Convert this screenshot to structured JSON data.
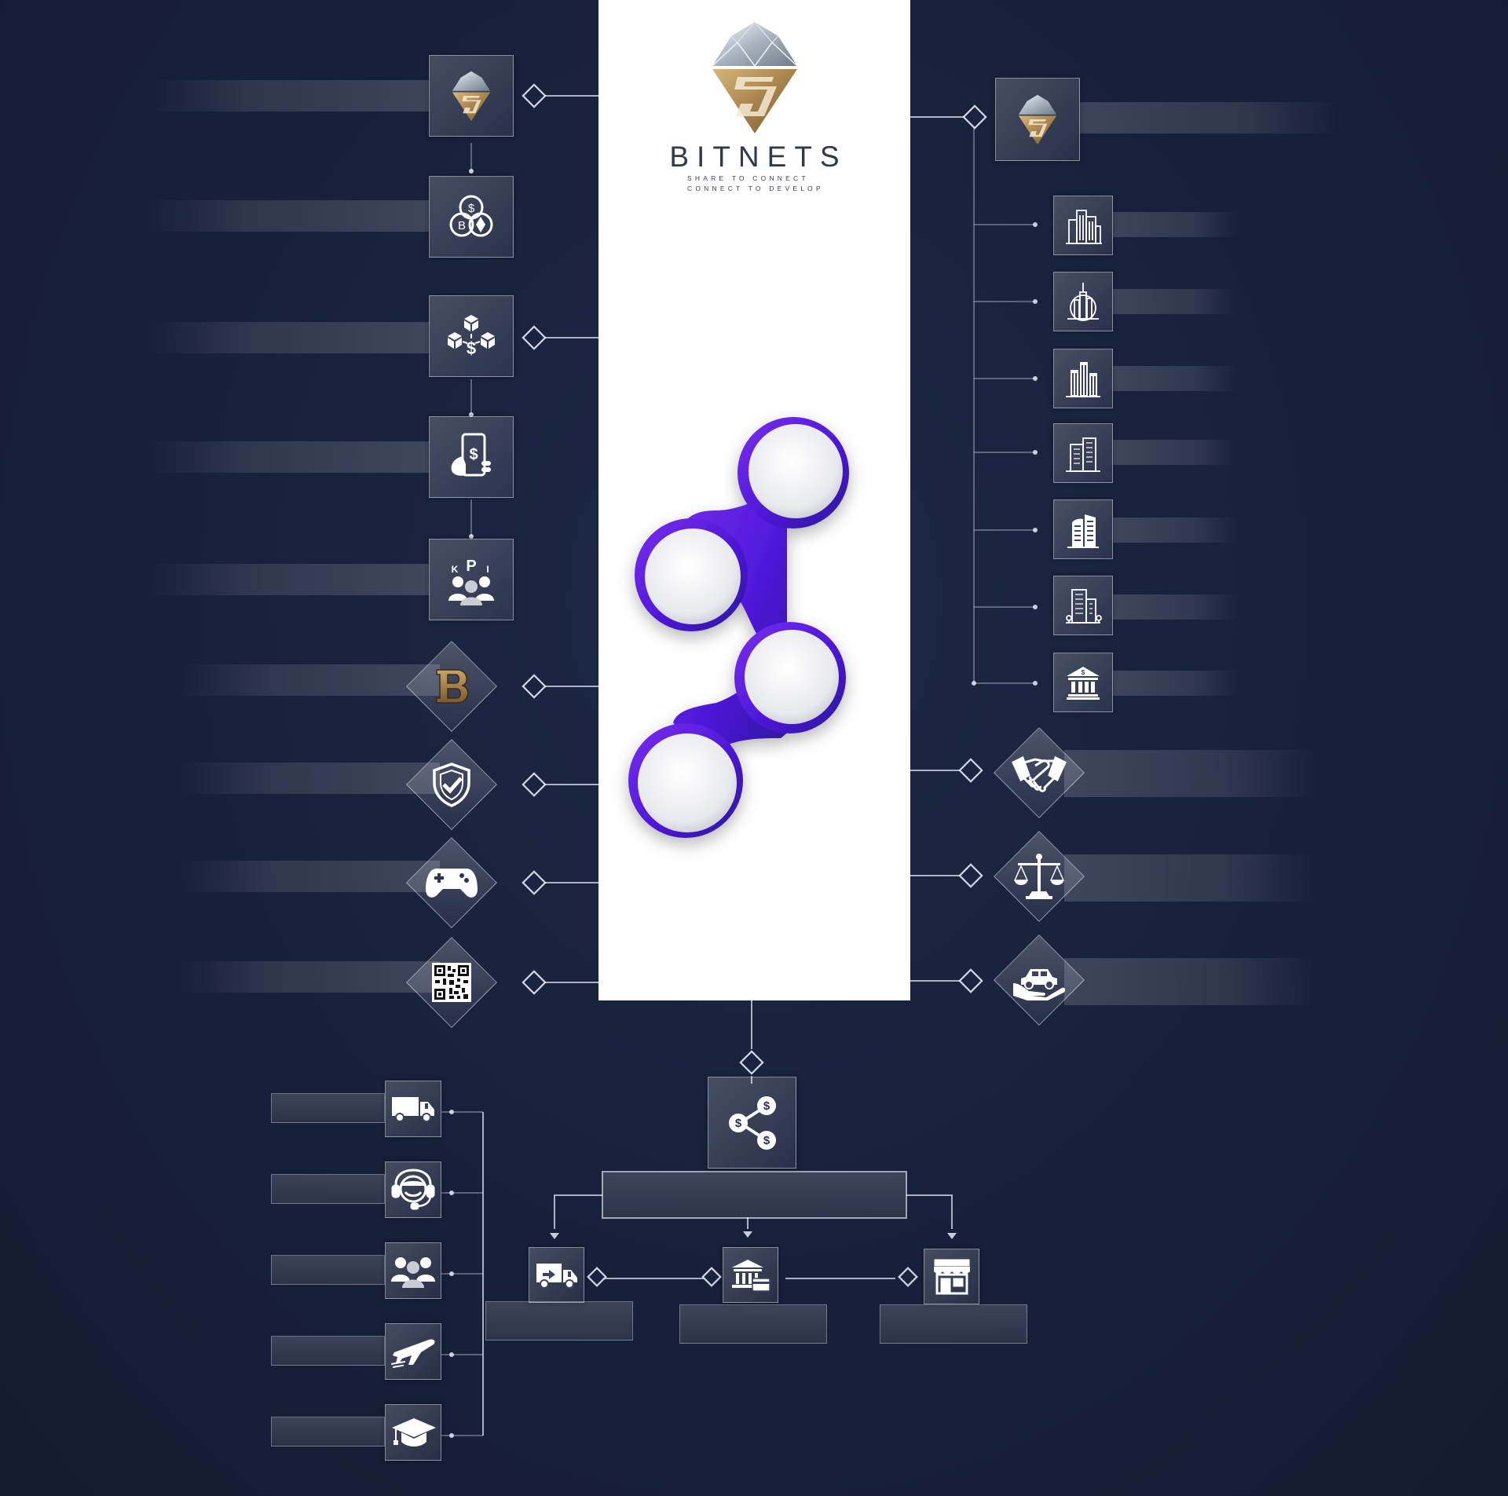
{
  "brand": {
    "name": "BITNETS",
    "tagline_1": "SHARE TO CONNECT",
    "tagline_2": "CONNECT TO DEVELOP"
  },
  "colors": {
    "background": "#18223a",
    "panel": "#ffffff",
    "accent_purple": "#5b1fe0",
    "gold": "#b8945a",
    "silver": "#c9d2dc"
  },
  "left_nodes": [
    {
      "icon": "bitnets-logo-icon"
    },
    {
      "icon": "crypto-coins-icon"
    },
    {
      "icon": "blockchain-payment-icon"
    },
    {
      "icon": "mobile-payment-icon"
    },
    {
      "icon": "kpi-team-icon"
    }
  ],
  "left_diamond_nodes": [
    {
      "icon": "b-token-icon"
    },
    {
      "icon": "security-shield-icon"
    },
    {
      "icon": "gamepad-icon"
    },
    {
      "icon": "qr-code-icon"
    }
  ],
  "right_nodes": [
    {
      "icon": "bitnets-logo-icon"
    },
    {
      "icon": "city-buildings-icon"
    },
    {
      "icon": "skyscraper-icon"
    },
    {
      "icon": "office-towers-icon"
    },
    {
      "icon": "office-building-icon"
    },
    {
      "icon": "modern-building-icon"
    },
    {
      "icon": "tower-block-icon"
    },
    {
      "icon": "bank-icon"
    }
  ],
  "right_diamond_nodes": [
    {
      "icon": "handshake-icon"
    },
    {
      "icon": "justice-scale-icon"
    },
    {
      "icon": "car-insurance-icon"
    }
  ],
  "bottom_left_nodes": [
    {
      "icon": "delivery-truck-icon"
    },
    {
      "icon": "customer-support-icon"
    },
    {
      "icon": "community-icon"
    },
    {
      "icon": "airplane-icon"
    },
    {
      "icon": "graduation-cap-icon"
    }
  ],
  "bottom_center": {
    "share_icon": "share-money-icon",
    "children": [
      "delivery-van-icon",
      "bank-payment-icon",
      "store-icon"
    ]
  },
  "central_graphic": {
    "type": "four-circle-step-diagram",
    "circles": 4
  }
}
